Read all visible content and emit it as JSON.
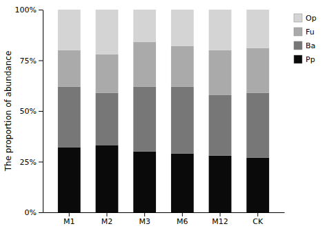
{
  "chart_data": {
    "type": "bar",
    "stacked": true,
    "categories": [
      "M1",
      "M2",
      "M3",
      "M6",
      "M12",
      "CK"
    ],
    "series": [
      {
        "name": "Pp",
        "color": "#0a0a0a",
        "values": [
          32,
          33,
          30,
          29,
          28,
          27
        ]
      },
      {
        "name": "Ba",
        "color": "#777777",
        "values": [
          30,
          26,
          32,
          33,
          30,
          32
        ]
      },
      {
        "name": "Fu",
        "color": "#aaaaaa",
        "values": [
          18,
          19,
          22,
          20,
          22,
          22
        ]
      },
      {
        "name": "Op",
        "color": "#d4d4d4",
        "values": [
          20,
          22,
          16,
          18,
          20,
          19
        ]
      }
    ],
    "y_label": "The proportion of abundance",
    "ylim": [
      0,
      100
    ],
    "yticks": [
      {
        "value": 0,
        "label": "0%"
      },
      {
        "value": 25,
        "label": "25%"
      },
      {
        "value": 50,
        "label": "50%"
      },
      {
        "value": 75,
        "label": "75%"
      },
      {
        "value": 100,
        "label": "100%"
      }
    ],
    "grid": false,
    "legend": "right"
  }
}
